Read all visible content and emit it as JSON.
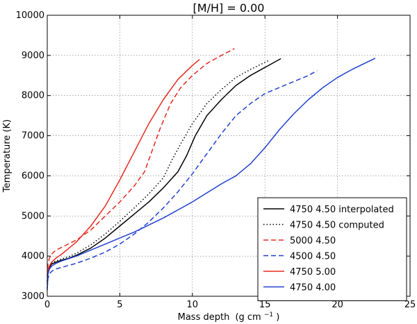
{
  "chart_data": {
    "type": "line",
    "title": "[M/H] = 0.00",
    "xlabel": "Mass depth",
    "xlabel_units": "(g cm",
    "xlabel_units_exp": "−1",
    "xlabel_units_close": ")",
    "ylabel": "Temperature (K)",
    "xlim": [
      0,
      25
    ],
    "ylim": [
      3000,
      10000
    ],
    "xticks": [
      0,
      5,
      10,
      15,
      20,
      25
    ],
    "yticks": [
      3000,
      4000,
      5000,
      6000,
      7000,
      8000,
      9000,
      10000
    ],
    "grid": true,
    "legend_position": "lower-right",
    "series": [
      {
        "name": "4750 4.50 interpolated",
        "color": "#000000",
        "style": "solid",
        "x": [
          0.0,
          0.05,
          0.15,
          0.3,
          0.6,
          1.0,
          1.5,
          2.0,
          3.0,
          4.0,
          5.0,
          6.0,
          7.0,
          8.0,
          9.0,
          9.6,
          10.2,
          11.0,
          12.0,
          13.0,
          14.0,
          15.0,
          16.1
        ],
        "y": [
          3350,
          3600,
          3720,
          3800,
          3850,
          3900,
          3950,
          4020,
          4200,
          4450,
          4750,
          5050,
          5350,
          5700,
          6100,
          6500,
          7000,
          7500,
          7900,
          8250,
          8500,
          8700,
          8920
        ]
      },
      {
        "name": "4750 4.50 computed",
        "color": "#000000",
        "style": "dotted",
        "x": [
          0.0,
          0.05,
          0.15,
          0.3,
          0.6,
          1.0,
          1.5,
          2.0,
          3.0,
          4.0,
          5.0,
          6.0,
          7.0,
          8.0,
          8.6,
          9.2,
          10.0,
          11.0,
          12.0,
          13.0,
          14.0,
          15.3
        ],
        "y": [
          3380,
          3650,
          3760,
          3830,
          3880,
          3930,
          3990,
          4070,
          4280,
          4550,
          4870,
          5200,
          5550,
          5950,
          6400,
          6800,
          7300,
          7800,
          8150,
          8450,
          8650,
          8880
        ]
      },
      {
        "name": "5000 4.50",
        "color": "#e8281e",
        "style": "dashed",
        "x": [
          0.0,
          0.05,
          0.15,
          0.3,
          0.6,
          1.0,
          2.0,
          3.0,
          4.0,
          5.0,
          6.0,
          6.7,
          7.2,
          7.8,
          8.5,
          9.2,
          10.0,
          11.0,
          12.0,
          12.9
        ],
        "y": [
          3500,
          3800,
          3950,
          4050,
          4150,
          4220,
          4400,
          4650,
          5000,
          5350,
          5750,
          6100,
          6600,
          7200,
          7800,
          8200,
          8500,
          8800,
          9000,
          9170
        ]
      },
      {
        "name": "4500 4.50",
        "color": "#1f3fd0",
        "style": "dashed",
        "x": [
          0.0,
          0.05,
          0.15,
          0.3,
          0.6,
          1.0,
          2.0,
          3.0,
          4.0,
          5.0,
          6.0,
          7.0,
          8.0,
          9.0,
          10.0,
          11.0,
          12.0,
          13.0,
          14.0,
          15.0,
          16.0,
          17.0,
          18.0,
          18.6
        ],
        "y": [
          3200,
          3450,
          3550,
          3620,
          3680,
          3720,
          3820,
          3950,
          4100,
          4300,
          4550,
          4850,
          5200,
          5600,
          6050,
          6550,
          7050,
          7500,
          7800,
          8050,
          8200,
          8350,
          8500,
          8620
        ]
      },
      {
        "name": "4750 5.00",
        "color": "#e8281e",
        "style": "solid",
        "x": [
          0.0,
          0.05,
          0.15,
          0.3,
          0.6,
          1.0,
          1.5,
          2.0,
          2.5,
          3.0,
          4.0,
          5.0,
          6.0,
          7.0,
          8.0,
          9.0,
          10.0,
          10.5
        ],
        "y": [
          3300,
          3650,
          3750,
          3850,
          3950,
          4050,
          4200,
          4350,
          4550,
          4750,
          5250,
          5900,
          6600,
          7300,
          7900,
          8400,
          8750,
          8900
        ]
      },
      {
        "name": "4750 4.00",
        "color": "#1f3fd0",
        "style": "solid",
        "x": [
          0.0,
          0.05,
          0.15,
          0.3,
          0.6,
          1.0,
          2.0,
          3.0,
          4.0,
          5.0,
          6.0,
          8.0,
          10.0,
          12.0,
          13.0,
          14.0,
          15.0,
          16.0,
          17.0,
          18.0,
          19.0,
          20.0,
          21.0,
          22.6
        ],
        "y": [
          3150,
          3550,
          3680,
          3750,
          3820,
          3880,
          4000,
          4150,
          4300,
          4450,
          4600,
          4950,
          5350,
          5800,
          6000,
          6300,
          6700,
          7150,
          7550,
          7900,
          8200,
          8450,
          8650,
          8930
        ]
      }
    ]
  }
}
